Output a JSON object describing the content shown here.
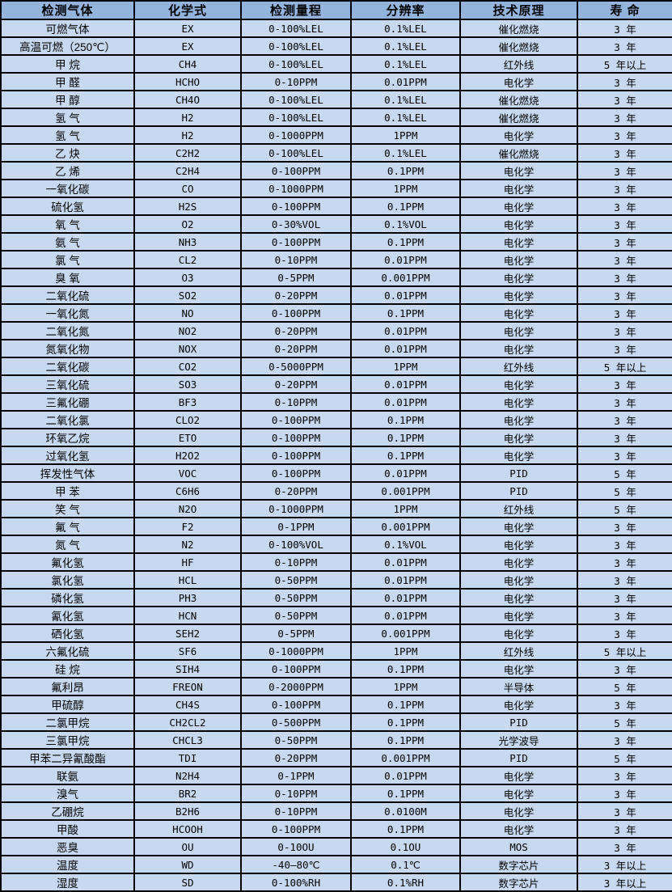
{
  "colors": {
    "header_bg": "#93b5dd",
    "row_bg": "#c6d9f1",
    "border": "#000000",
    "text": "#000000"
  },
  "table": {
    "columns": [
      "检测气体",
      "化学式",
      "检测量程",
      "分辨率",
      "技术原理",
      "寿 命"
    ],
    "rows": [
      [
        "可燃气体",
        "EX",
        "0-100%LEL",
        "0.1%LEL",
        "催化燃烧",
        "3 年"
      ],
      [
        "高温可燃（250℃）",
        "EX",
        "0-100%LEL",
        "0.1%LEL",
        "催化燃烧",
        "3 年"
      ],
      [
        "甲 烷",
        "CH4",
        "0-100%LEL",
        "0.1%LEL",
        "红外线",
        "5 年以上"
      ],
      [
        "甲 醛",
        "HCHO",
        "0-10PPM",
        "0.01PPM",
        "电化学",
        "3 年"
      ],
      [
        "甲 醇",
        "CH4O",
        "0-100%LEL",
        "0.1%LEL",
        "催化燃烧",
        "3 年"
      ],
      [
        "氢 气",
        "H2",
        "0-100%LEL",
        "0.1%LEL",
        "催化燃烧",
        "3 年"
      ],
      [
        "氢 气",
        "H2",
        "0-1000PPM",
        "1PPM",
        "电化学",
        "3 年"
      ],
      [
        "乙 炔",
        "C2H2",
        "0-100%LEL",
        "0.1%LEL",
        "催化燃烧",
        "3 年"
      ],
      [
        "乙 烯",
        "C2H4",
        "0-100PPM",
        "0.1PPM",
        "电化学",
        "3 年"
      ],
      [
        "一氧化碳",
        "CO",
        "0-1000PPM",
        "1PPM",
        "电化学",
        "3 年"
      ],
      [
        "硫化氢",
        "H2S",
        "0-100PPM",
        "0.1PPM",
        "电化学",
        "3 年"
      ],
      [
        "氧 气",
        "O2",
        "0-30%VOL",
        "0.1%VOL",
        "电化学",
        "3 年"
      ],
      [
        "氨 气",
        "NH3",
        "0-100PPM",
        "0.1PPM",
        "电化学",
        "3 年"
      ],
      [
        "氯 气",
        "CL2",
        "0-10PPM",
        "0.01PPM",
        "电化学",
        "3 年"
      ],
      [
        "臭 氧",
        "O3",
        "0-5PPM",
        "0.001PPM",
        "电化学",
        "3 年"
      ],
      [
        "二氧化硫",
        "SO2",
        "0-20PPM",
        "0.01PPM",
        "电化学",
        "3 年"
      ],
      [
        "一氧化氮",
        "NO",
        "0-100PPM",
        "0.1PPM",
        "电化学",
        "3 年"
      ],
      [
        "二氧化氮",
        "NO2",
        "0-20PPM",
        "0.01PPM",
        "电化学",
        "3 年"
      ],
      [
        "氮氧化物",
        "NOX",
        "0-20PPM",
        "0.01PPM",
        "电化学",
        "3 年"
      ],
      [
        "二氧化碳",
        "CO2",
        "0-5000PPM",
        "1PPM",
        "红外线",
        "5 年以上"
      ],
      [
        "三氧化硫",
        "SO3",
        "0-20PPM",
        "0.01PPM",
        "电化学",
        "3 年"
      ],
      [
        "三氟化硼",
        "BF3",
        "0-10PPM",
        "0.01PPM",
        "电化学",
        "3 年"
      ],
      [
        "二氧化氯",
        "CLO2",
        "0-100PPM",
        "0.1PPM",
        "电化学",
        "3 年"
      ],
      [
        "环氧乙烷",
        "ETO",
        "0-100PPM",
        "0.1PPM",
        "电化学",
        "3 年"
      ],
      [
        "过氧化氢",
        "H2O2",
        "0-100PPM",
        "0.1PPM",
        "电化学",
        "3 年"
      ],
      [
        "挥发性气体",
        "VOC",
        "0-100PPM",
        "0.01PPM",
        "PID",
        "5 年"
      ],
      [
        "甲 苯",
        "C6H6",
        "0-20PPM",
        "0.001PPM",
        "PID",
        "5 年"
      ],
      [
        "笑 气",
        "N2O",
        "0-1000PPM",
        "1PPM",
        "红外线",
        "5 年"
      ],
      [
        "氟 气",
        "F2",
        "0-1PPM",
        "0.001PPM",
        "电化学",
        "3 年"
      ],
      [
        "氮 气",
        "N2",
        "0-100%VOL",
        "0.1%VOL",
        "电化学",
        "3 年"
      ],
      [
        "氟化氢",
        "HF",
        "0-10PPM",
        "0.01PPM",
        "电化学",
        "3 年"
      ],
      [
        "氯化氢",
        "HCL",
        "0-50PPM",
        "0.01PPM",
        "电化学",
        "3 年"
      ],
      [
        "磷化氢",
        "PH3",
        "0-50PPM",
        "0.01PPM",
        "电化学",
        "3 年"
      ],
      [
        "氰化氢",
        "HCN",
        "0-50PPM",
        "0.01PPM",
        "电化学",
        "3 年"
      ],
      [
        "硒化氢",
        "SEH2",
        "0-5PPM",
        "0.001PPM",
        "电化学",
        "3 年"
      ],
      [
        "六氟化硫",
        "SF6",
        "0-1000PPM",
        "1PPM",
        "红外线",
        "5 年以上"
      ],
      [
        "硅 烷",
        "SIH4",
        "0-100PPM",
        "0.1PPM",
        "电化学",
        "3 年"
      ],
      [
        "氟利昂",
        "FREON",
        "0-2000PPM",
        "1PPM",
        "半导体",
        "5 年"
      ],
      [
        "甲硫醇",
        "CH4S",
        "0-100PPM",
        "0.1PPM",
        "电化学",
        "3 年"
      ],
      [
        "二氯甲烷",
        "CH2CL2",
        "0-500PPM",
        "0.1PPM",
        "PID",
        "5 年"
      ],
      [
        "三氯甲烷",
        "CHCL3",
        "0-50PPM",
        "0.1PPM",
        "光学波导",
        "3 年"
      ],
      [
        "甲苯二异氰酸酯",
        "TDI",
        "0-20PPM",
        "0.001PPM",
        "PID",
        "5 年"
      ],
      [
        "联氨",
        "N2H4",
        "0-1PPM",
        "0.01PPM",
        "电化学",
        "3 年"
      ],
      [
        "溴气",
        "BR2",
        "0-10PPM",
        "0.1PPM",
        "电化学",
        "3 年"
      ],
      [
        "乙硼烷",
        "B2H6",
        "0-10PPM",
        "0.0100M",
        "电化学",
        "3 年"
      ],
      [
        "甲酸",
        "HCOOH",
        "0-100PPM",
        "0.1PPM",
        "电化学",
        "3 年"
      ],
      [
        "恶臭",
        "OU",
        "0-10OU",
        "0.1OU",
        "MOS",
        "3 年"
      ],
      [
        "温度",
        "WD",
        "-40—80℃",
        "0.1℃",
        "数字芯片",
        "3 年以上"
      ],
      [
        "湿度",
        "SD",
        "0-100%RH",
        "0.1%RH",
        "数字芯片",
        "3 年以上"
      ]
    ]
  }
}
